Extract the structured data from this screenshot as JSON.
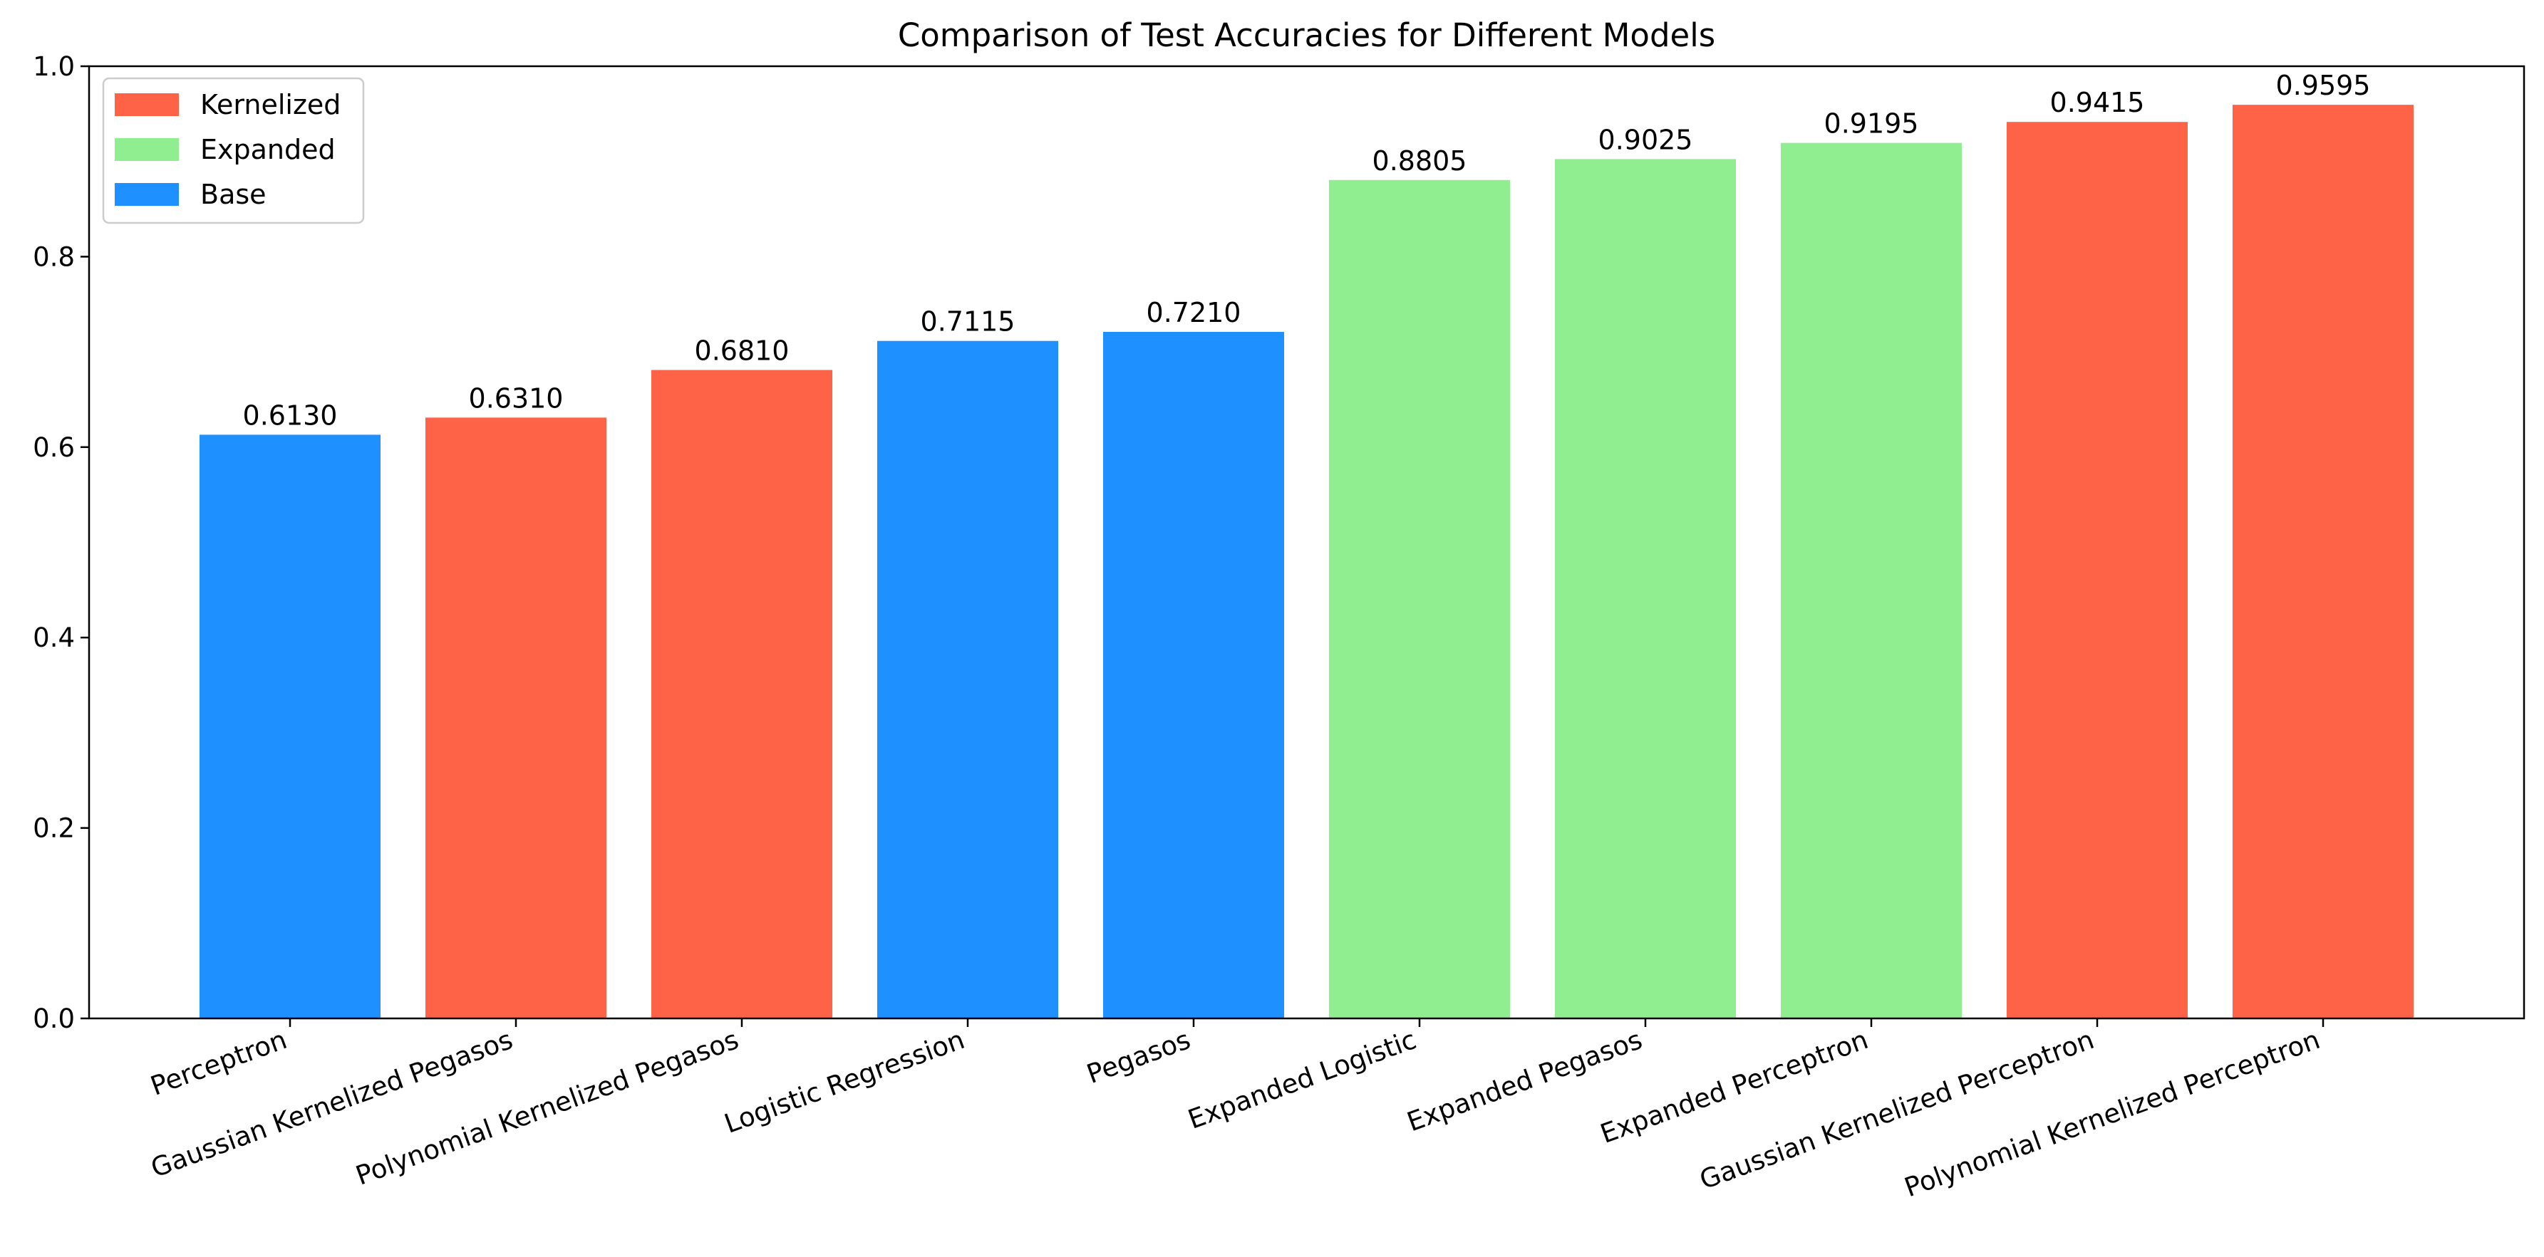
{
  "chart_data": {
    "type": "bar",
    "title": "Comparison of Test Accuracies for Different Models",
    "xlabel": "",
    "ylabel": "",
    "ylim": [
      0,
      1.0
    ],
    "yticks": [
      "0.0",
      "0.2",
      "0.4",
      "0.6",
      "0.8",
      "1.0"
    ],
    "grid": false,
    "legend_position": "top-left",
    "categories": [
      "Perceptron",
      "Gaussian Kernelized Pegasos",
      "Polynomial Kernelized Pegasos",
      "Logistic Regression",
      "Pegasos",
      "Expanded Logistic",
      "Expanded Pegasos",
      "Expanded Perceptron",
      "Gaussian Kernelized Perceptron",
      "Polynomial Kernelized Perceptron"
    ],
    "values": [
      0.613,
      0.631,
      0.681,
      0.7115,
      0.721,
      0.8805,
      0.9025,
      0.9195,
      0.9415,
      0.9595
    ],
    "value_labels": [
      "0.6130",
      "0.6310",
      "0.6810",
      "0.7115",
      "0.7210",
      "0.8805",
      "0.9025",
      "0.9195",
      "0.9415",
      "0.9595"
    ],
    "groups": [
      "Base",
      "Kernelized",
      "Kernelized",
      "Base",
      "Base",
      "Expanded",
      "Expanded",
      "Expanded",
      "Kernelized",
      "Kernelized"
    ],
    "legend": [
      {
        "name": "Kernelized",
        "color": "#ff6347"
      },
      {
        "name": "Expanded",
        "color": "#90ee90"
      },
      {
        "name": "Base",
        "color": "#1e90ff"
      }
    ]
  }
}
